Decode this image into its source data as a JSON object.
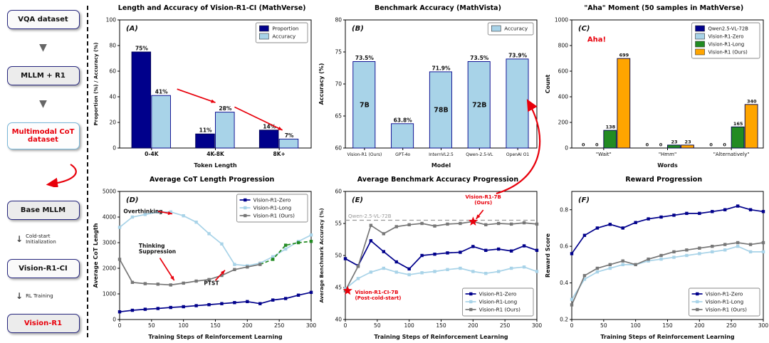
{
  "flowchart": {
    "boxes": [
      {
        "label": "VQA dataset"
      },
      {
        "label": "MLLM + R1"
      },
      {
        "label": "Multimodal CoT dataset"
      },
      {
        "label": "Base MLLM"
      },
      {
        "label": "Vision-R1-CI"
      },
      {
        "label": "Vision-R1"
      }
    ],
    "arrow_labels": [
      "Cold-start Initialization",
      "RL Training"
    ]
  },
  "colors": {
    "navy": "#00008B",
    "light_blue": "#A8D3E8",
    "green": "#228B22",
    "orange": "#FFA500",
    "gray": "#777777",
    "red": "#E8000B"
  },
  "chart_data": [
    {
      "type": "bar",
      "panel_label": "(A)",
      "title": "Length and Accuracy of Vision-R1-CI (MathVerse)",
      "xlabel": "Token Length",
      "ylabel": "Proportion (%) / Accuracy (%)",
      "ylabel_size": 7,
      "ylim": [
        0,
        100
      ],
      "yticks": [
        0,
        20,
        40,
        60,
        80,
        100
      ],
      "categories": [
        "0-4K",
        "4K-8K",
        "8K+"
      ],
      "group_frac": 0.62,
      "cat_weight": "bold",
      "series": [
        {
          "name": "Proportion",
          "color": "#00008B",
          "edge": "#000050",
          "values": [
            75,
            11,
            14
          ],
          "labels": [
            "75%",
            "11%",
            "14%"
          ]
        },
        {
          "name": "Accuracy",
          "color": "#A8D3E8",
          "edge": "#00008B",
          "values": [
            41,
            28,
            7
          ],
          "labels": [
            "41%",
            "28%",
            "7%"
          ]
        }
      ],
      "legend": {
        "pos": "tr"
      },
      "arrows": [
        {
          "x1": 0.3,
          "y1": 0.54,
          "x2": 0.5,
          "y2": 0.645,
          "color": "#E8000B"
        },
        {
          "x1": 0.6,
          "y1": 0.68,
          "x2": 0.85,
          "y2": 0.86,
          "color": "#E8000B"
        }
      ]
    },
    {
      "type": "bar",
      "panel_label": "(B)",
      "title": "Benchmark Accuracy (MathVista)",
      "xlabel": "Model",
      "ylabel": "Accuracy (%)",
      "ylim": [
        60,
        80
      ],
      "yticks": [
        60,
        65,
        70,
        75,
        80
      ],
      "categories": [
        "Vision-R1 (Ours)",
        "GPT-4o",
        "InternVL2.5",
        "Qwen-2.5-VL",
        "OpenAI O1"
      ],
      "cat_size": 6,
      "group_frac": 0.6,
      "series": [
        {
          "name": "Accuracy",
          "color": "#A8D3E8",
          "edge": "#00008B",
          "values": [
            73.5,
            63.8,
            71.9,
            73.5,
            73.9
          ],
          "labels": [
            "73.5%",
            "63.8%",
            "71.9%",
            "73.5%",
            "73.9%"
          ]
        }
      ],
      "inner_labels": [
        {
          "series": 0,
          "cat": 0,
          "text": "7B"
        },
        {
          "series": 0,
          "cat": 2,
          "text": "78B"
        },
        {
          "series": 0,
          "cat": 3,
          "text": "72B"
        }
      ],
      "legend": {
        "pos": "tr"
      }
    },
    {
      "type": "bar",
      "panel_label": "(C)",
      "title": "\"Aha\" Moment (50 samples in MathVerse)",
      "xlabel": "Words",
      "ylabel": "Count",
      "ylim": [
        0,
        1000
      ],
      "yticks": [
        0,
        200,
        400,
        600,
        800,
        1000
      ],
      "categories": [
        "\"Wait\"",
        "\"Hmm\"",
        "\"Alternatively\""
      ],
      "cat_size": 7,
      "group_frac": 0.85,
      "label_size": 6.5,
      "series": [
        {
          "name": "Qwen2.5-VL-72B",
          "color": "#00008B",
          "values": [
            0,
            0,
            0
          ],
          "labels": [
            "0",
            "0",
            "0"
          ]
        },
        {
          "name": "Vision-R1-Zero",
          "color": "#A8D3E8",
          "values": [
            0,
            0,
            0
          ],
          "labels": [
            "0",
            "0",
            "0"
          ]
        },
        {
          "name": "Vision-R1-Long",
          "color": "#228B22",
          "values": [
            138,
            23,
            165
          ],
          "labels": [
            "138",
            "23",
            "165"
          ]
        },
        {
          "name": "Vision-R1 (Ours)",
          "color": "#FFA500",
          "values": [
            699,
            23,
            340
          ],
          "labels": [
            "699",
            "23",
            "340"
          ]
        }
      ],
      "legend": {
        "pos": "tr",
        "size": 6.8
      },
      "annotations": [
        {
          "text": "Aha!",
          "fx": 0.13,
          "fy": 0.17,
          "color": "#E8000B",
          "size": 10,
          "weight": "bold"
        }
      ]
    },
    {
      "type": "line",
      "panel_label": "(D)",
      "title": "Average CoT Length Progression",
      "xlabel": "Training Steps of Reinforcement Learning",
      "ylabel": "Average CoT Length",
      "xlim": [
        0,
        300
      ],
      "xticks": [
        0,
        50,
        100,
        150,
        200,
        250,
        300
      ],
      "ylim": [
        0,
        5000
      ],
      "yticks": [
        0,
        1000,
        2000,
        3000,
        4000,
        5000
      ],
      "x": [
        0,
        20,
        40,
        60,
        80,
        100,
        120,
        140,
        160,
        180,
        200,
        220,
        240,
        260,
        280,
        300
      ],
      "series": [
        {
          "name": "Vision-R1-Zero",
          "color": "#00008B",
          "values": [
            300,
            360,
            400,
            430,
            470,
            500,
            540,
            580,
            620,
            660,
            700,
            620,
            760,
            820,
            950,
            1060
          ]
        },
        {
          "name": "Vision-R1-Long",
          "color": "#A8D3E8",
          "values": [
            3600,
            4000,
            4100,
            4200,
            4200,
            4050,
            3800,
            3350,
            2950,
            2150,
            2100,
            2200,
            2450,
            2750,
            3050,
            3300
          ]
        },
        {
          "name": "Vision-R1 (Ours)",
          "color": "#777777",
          "values": [
            2350,
            1450,
            1400,
            1380,
            1350,
            1420,
            1500,
            1560,
            1720,
            1950,
            2050,
            2150,
            2350,
            2900,
            3000,
            3050
          ],
          "tail_from": 11,
          "tail_color": "#228B22"
        }
      ],
      "legend": {
        "pos": "tr"
      },
      "annotations": [
        {
          "text": "Overthinking",
          "fx": 0.02,
          "fy": 0.17,
          "color": "#111111",
          "size": 7.5,
          "weight": "bold",
          "anchor": "start"
        },
        {
          "text": "Thinking\nSuppression",
          "fx": 0.1,
          "fy": 0.44,
          "color": "#111111",
          "size": 7.5,
          "weight": "bold",
          "anchor": "start",
          "lh": 8
        },
        {
          "text": "PTST",
          "fx": 0.44,
          "fy": 0.73,
          "color": "#111111",
          "size": 7.5,
          "weight": "bold",
          "anchor": "start"
        }
      ],
      "arrows": [
        {
          "x1": 0.2,
          "y1": 0.155,
          "x2": 0.275,
          "y2": 0.175,
          "color": "#E8000B"
        },
        {
          "x1": 0.21,
          "y1": 0.52,
          "x2": 0.285,
          "y2": 0.695,
          "color": "#E8000B"
        },
        {
          "x1": 0.5,
          "y1": 0.695,
          "x2": 0.55,
          "y2": 0.615,
          "color": "#E8000B"
        }
      ]
    },
    {
      "type": "line",
      "panel_label": "(E)",
      "title": "Average Benchmark Accuracy Progression",
      "xlabel": "Training Steps of Reinforcement Learning",
      "ylabel": "Average Benchmark Accuracy (%)",
      "ylabel_size": 7,
      "xlim": [
        0,
        300
      ],
      "xticks": [
        0,
        50,
        100,
        150,
        200,
        250,
        300
      ],
      "ylim": [
        40,
        60
      ],
      "yticks": [
        40,
        45,
        50,
        55,
        60
      ],
      "x": [
        0,
        20,
        40,
        60,
        80,
        100,
        120,
        140,
        160,
        180,
        200,
        220,
        240,
        260,
        280,
        300
      ],
      "hlines": [
        {
          "y": 55.5,
          "label": "Qwen-2.5-VL-72B",
          "color": "#999999"
        }
      ],
      "series": [
        {
          "name": "Vision-R1-Zero",
          "color": "#00008B",
          "values": [
            49.5,
            48.4,
            52.3,
            50.6,
            49.0,
            47.9,
            50.0,
            50.2,
            50.4,
            50.5,
            51.4,
            50.8,
            51.0,
            50.7,
            51.5,
            50.8
          ]
        },
        {
          "name": "Vision-R1-Long",
          "color": "#A8D3E8",
          "values": [
            44.8,
            46.4,
            47.4,
            48.0,
            47.4,
            47.0,
            47.3,
            47.5,
            47.8,
            48.0,
            47.5,
            47.2,
            47.5,
            48.0,
            48.2,
            47.5
          ]
        },
        {
          "name": "Vision-R1 (Ours)",
          "color": "#777777",
          "values": [
            44.5,
            48.3,
            54.7,
            53.4,
            54.5,
            54.8,
            55.0,
            54.6,
            54.9,
            55.0,
            55.3,
            54.8,
            55.0,
            54.9,
            55.1,
            54.9
          ]
        }
      ],
      "stars": [
        {
          "fx": 0.012,
          "fy": 0.775
        },
        {
          "fx": 0.667,
          "fy": 0.235
        }
      ],
      "legend": {
        "pos": "br"
      },
      "annotations": [
        {
          "text": "Vision-R1-CI-7B\n(Post-cold-start)",
          "fx": 0.05,
          "fy": 0.8,
          "color": "#E8000B",
          "size": 7,
          "weight": "bold",
          "anchor": "start",
          "lh": 8
        },
        {
          "text": "Vision-R1-7B\n(Ours)",
          "fx": 0.72,
          "fy": 0.055,
          "color": "#E8000B",
          "size": 7,
          "weight": "bold",
          "anchor": "middle",
          "lh": 8
        }
      ],
      "arrows": [
        {
          "x1": 0.72,
          "y1": 0.145,
          "x2": 0.683,
          "y2": 0.215,
          "color": "#E8000B"
        }
      ]
    },
    {
      "type": "line",
      "panel_label": "(F)",
      "title": "Reward Progression",
      "xlabel": "Training Steps of Reinforcement Learning",
      "ylabel": "Reward Score",
      "xlim": [
        0,
        300
      ],
      "xticks": [
        0,
        50,
        100,
        150,
        200,
        250,
        300
      ],
      "ylim": [
        0.2,
        0.9
      ],
      "yticks": [
        0.2,
        0.4,
        0.6,
        0.8
      ],
      "x": [
        0,
        20,
        40,
        60,
        80,
        100,
        120,
        140,
        160,
        180,
        200,
        220,
        240,
        260,
        280,
        300
      ],
      "series": [
        {
          "name": "Vision-R1-Zero",
          "color": "#00008B",
          "values": [
            0.56,
            0.66,
            0.7,
            0.72,
            0.7,
            0.73,
            0.75,
            0.76,
            0.77,
            0.78,
            0.78,
            0.79,
            0.8,
            0.82,
            0.8,
            0.79
          ]
        },
        {
          "name": "Vision-R1-Long",
          "color": "#A8D3E8",
          "values": [
            0.31,
            0.42,
            0.46,
            0.48,
            0.5,
            0.5,
            0.52,
            0.53,
            0.54,
            0.55,
            0.56,
            0.57,
            0.58,
            0.6,
            0.57,
            0.57
          ]
        },
        {
          "name": "Vision-R1 (Ours)",
          "color": "#777777",
          "values": [
            0.28,
            0.44,
            0.48,
            0.5,
            0.52,
            0.5,
            0.53,
            0.55,
            0.57,
            0.58,
            0.59,
            0.6,
            0.61,
            0.62,
            0.61,
            0.62
          ]
        }
      ],
      "legend": {
        "pos": "br"
      }
    }
  ]
}
